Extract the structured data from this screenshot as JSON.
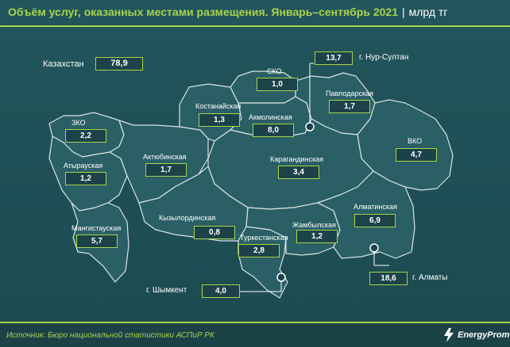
{
  "header": {
    "title": "Объём услуг, оказанных местами размещения. Январь–сентябрь 2021",
    "separator": "|",
    "unit": "млрд тг"
  },
  "footer": {
    "source": "Источник: Бюро национальной статистики АСПиР РК",
    "logo_text": "EnergyProm"
  },
  "colors": {
    "accent": "#a8d44a",
    "background": "#1f4a50",
    "map_fill": "#2a5f66",
    "map_border": "#d9e4e4"
  },
  "total": {
    "label": "Казахстан",
    "value": "78,9"
  },
  "regions": [
    {
      "id": "zko",
      "label": "ЗКО",
      "value": "2,2"
    },
    {
      "id": "atyrau",
      "label": "Атырауская",
      "value": "1,2"
    },
    {
      "id": "mangistau",
      "label": "Мангистауская",
      "value": "5,7"
    },
    {
      "id": "aktobe",
      "label": "Актюбинская",
      "value": "1,7"
    },
    {
      "id": "kostanay",
      "label": "Костанайская",
      "value": "1,3"
    },
    {
      "id": "sko",
      "label": "СКО",
      "value": "1,0"
    },
    {
      "id": "akmola",
      "label": "Акмолинская",
      "value": "8,0"
    },
    {
      "id": "pavlodar",
      "label": "Павлодарская",
      "value": "1,7"
    },
    {
      "id": "vko",
      "label": "ВКО",
      "value": "4,7"
    },
    {
      "id": "karaganda",
      "label": "Карагандинская",
      "value": "3,4"
    },
    {
      "id": "kyzylorda",
      "label": "Кызылординская",
      "value": "0,8"
    },
    {
      "id": "turkestan",
      "label": "Туркестанская",
      "value": "2,8"
    },
    {
      "id": "zhambyl",
      "label": "Жамбылская",
      "value": "1,2"
    },
    {
      "id": "almaty_reg",
      "label": "Алматинская",
      "value": "6,9"
    }
  ],
  "cities": [
    {
      "id": "nur_sultan",
      "label": "г. Нур-Султан",
      "value": "13,7"
    },
    {
      "id": "almaty",
      "label": "г. Алматы",
      "value": "18,6"
    },
    {
      "id": "shymkent",
      "label": "г. Шымкент",
      "value": "4,0"
    }
  ]
}
